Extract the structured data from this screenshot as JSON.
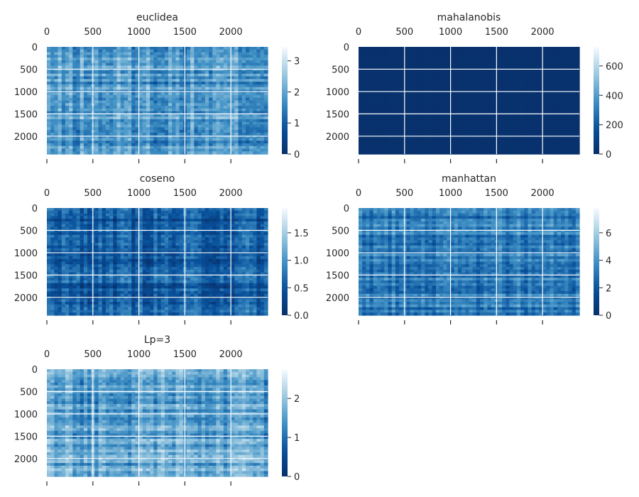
{
  "chart_data": [
    {
      "type": "heatmap",
      "title": "euclidea",
      "colormap": "Blues_r",
      "x_ticks": [
        "0",
        "500",
        "1000",
        "1500",
        "2000"
      ],
      "y_ticks": [
        "0",
        "500",
        "1000",
        "1500",
        "2000"
      ],
      "x_range": [
        0,
        2400
      ],
      "y_range": [
        0,
        2400
      ],
      "colorbar_ticks": [
        "0",
        "1",
        "2",
        "3"
      ],
      "colorbar_range": [
        0,
        3.45
      ],
      "value_mean": 1.8,
      "value_spread": 0.9
    },
    {
      "type": "heatmap",
      "title": "mahalanobis",
      "colormap": "Blues_r",
      "x_ticks": [
        "0",
        "500",
        "1000",
        "1500",
        "2000"
      ],
      "y_ticks": [
        "0",
        "500",
        "1000",
        "1500",
        "2000"
      ],
      "x_range": [
        0,
        2400
      ],
      "y_range": [
        0,
        2400
      ],
      "colorbar_ticks": [
        "0",
        "200",
        "400",
        "600"
      ],
      "colorbar_range": [
        0,
        730
      ],
      "value_mean": 8,
      "value_spread": 6
    },
    {
      "type": "heatmap",
      "title": "coseno",
      "colormap": "Blues_r",
      "x_ticks": [
        "0",
        "500",
        "1000",
        "1500",
        "2000"
      ],
      "y_ticks": [
        "0",
        "500",
        "1000",
        "1500",
        "2000"
      ],
      "x_range": [
        0,
        2400
      ],
      "y_range": [
        0,
        2400
      ],
      "colorbar_ticks": [
        "0.0",
        "0.5",
        "1.0",
        "1.5"
      ],
      "colorbar_range": [
        0,
        1.95
      ],
      "value_mean": 0.55,
      "value_spread": 0.45
    },
    {
      "type": "heatmap",
      "title": "manhattan",
      "colormap": "Blues_r",
      "x_ticks": [
        "0",
        "500",
        "1000",
        "1500",
        "2000"
      ],
      "y_ticks": [
        "0",
        "500",
        "1000",
        "1500",
        "2000"
      ],
      "x_range": [
        0,
        2400
      ],
      "y_range": [
        0,
        2400
      ],
      "colorbar_ticks": [
        "0",
        "2",
        "4",
        "6"
      ],
      "colorbar_range": [
        0,
        7.8
      ],
      "value_mean": 3.2,
      "value_spread": 1.6
    },
    {
      "type": "heatmap",
      "title": "Lp=3",
      "colormap": "Blues_r",
      "x_ticks": [
        "0",
        "500",
        "1000",
        "1500",
        "2000"
      ],
      "y_ticks": [
        "0",
        "500",
        "1000",
        "1500",
        "2000"
      ],
      "x_range": [
        0,
        2400
      ],
      "y_range": [
        0,
        2400
      ],
      "colorbar_ticks": [
        "0",
        "1",
        "2"
      ],
      "colorbar_range": [
        0,
        2.75
      ],
      "value_mean": 1.6,
      "value_spread": 0.7
    }
  ]
}
